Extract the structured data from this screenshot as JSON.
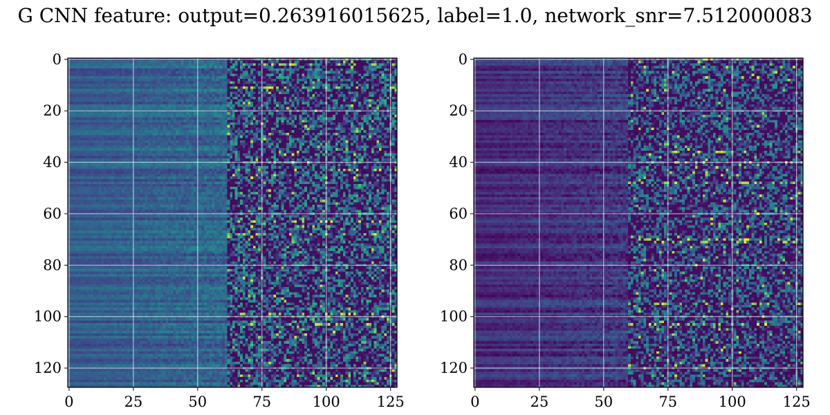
{
  "figure": {
    "title": "G CNN feature: output=0.263916015625, label=1.0, network_snr=7.512000083"
  },
  "chart_data": [
    {
      "type": "heatmap",
      "colormap": "viridis",
      "matrix_shape": [
        128,
        128
      ],
      "xlim": [
        0,
        127
      ],
      "ylim": [
        127,
        0
      ],
      "xticks": [
        0,
        25,
        50,
        75,
        100,
        125
      ],
      "yticks": [
        0,
        20,
        40,
        60,
        80,
        100,
        120
      ],
      "xtick_labels": [
        "0",
        "25",
        "50",
        "75",
        "100",
        "125"
      ],
      "ytick_labels": [
        "0",
        "20",
        "40",
        "60",
        "80",
        "100",
        "120"
      ],
      "grid": true,
      "grid_color": "#ffffff",
      "baseline_level": 0.28,
      "noise_onset_column": 62,
      "noise_level": 0.42,
      "hot_rows": [
        2,
        11,
        43,
        63,
        68,
        99,
        103
      ],
      "colors": {
        "low": "#440154",
        "mid": "#21918c",
        "high": "#fde725"
      }
    },
    {
      "type": "heatmap",
      "colormap": "viridis",
      "matrix_shape": [
        128,
        128
      ],
      "xlim": [
        0,
        127
      ],
      "ylim": [
        127,
        0
      ],
      "xticks": [
        0,
        25,
        50,
        75,
        100,
        125
      ],
      "yticks": [
        0,
        20,
        40,
        60,
        80,
        100,
        120
      ],
      "xtick_labels": [
        "0",
        "25",
        "50",
        "75",
        "100",
        "125"
      ],
      "ytick_labels": [
        "0",
        "20",
        "40",
        "60",
        "80",
        "100",
        "120"
      ],
      "grid": true,
      "grid_color": "#ffffff",
      "baseline_level": 0.12,
      "noise_onset_column": 60,
      "noise_level": 0.36,
      "hot_rows": [
        36,
        40,
        48,
        70,
        71,
        95,
        103
      ],
      "colors": {
        "low": "#440154",
        "mid": "#21918c",
        "high": "#fde725"
      }
    }
  ]
}
